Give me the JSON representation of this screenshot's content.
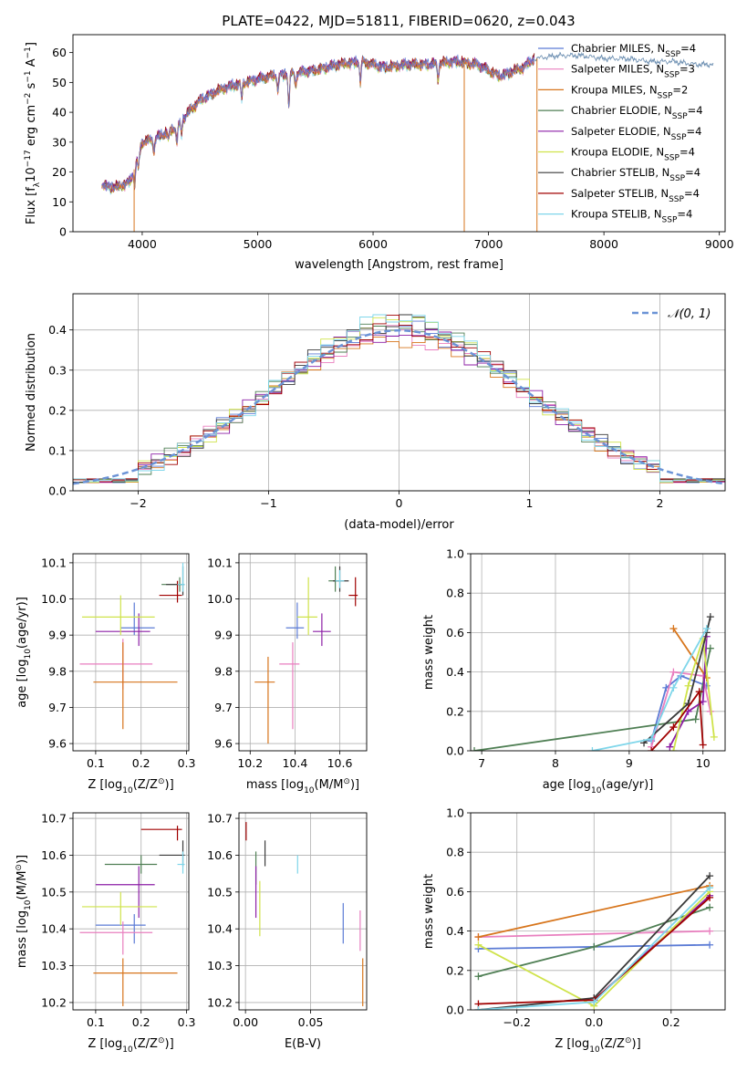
{
  "figure_title": "PLATE=0422, MJD=51811, FIBERID=0620, z=0.043",
  "colors": [
    "#5b7bd5",
    "#e97fbf",
    "#d7751c",
    "#4f7f54",
    "#8c1ea6",
    "#cfe34a",
    "#3a3a3a",
    "#a00000",
    "#7fd6ea"
  ],
  "chart_data": [
    {
      "id": "spectrum",
      "type": "line",
      "title": "PLATE=0422, MJD=51811, FIBERID=0620, z=0.043",
      "xlabel": "wavelength [Angstrom, rest frame]",
      "ylabel_parts": [
        "Flux [f",
        "λ",
        "10",
        "−17",
        " erg cm",
        "−2",
        " s",
        "−1",
        " A",
        "−1",
        "]"
      ],
      "xlim": [
        3400,
        9050
      ],
      "ylim": [
        0,
        66
      ],
      "xticks": [
        4000,
        5000,
        6000,
        7000,
        8000,
        9000
      ],
      "yticks": [
        0,
        10,
        20,
        30,
        40,
        50,
        60
      ],
      "grid": false,
      "legend_position": "right",
      "legend": [
        {
          "name": "Chabrier MILES, N",
          "sub": "SSP",
          "suffix": "=4"
        },
        {
          "name": "Salpeter MILES, N",
          "sub": "SSP",
          "suffix": "=3"
        },
        {
          "name": "Kroupa MILES, N",
          "sub": "SSP",
          "suffix": "=2"
        },
        {
          "name": "Chabrier ELODIE, N",
          "sub": "SSP",
          "suffix": "=4"
        },
        {
          "name": "Salpeter ELODIE, N",
          "sub": "SSP",
          "suffix": "=4"
        },
        {
          "name": "Kroupa ELODIE, N",
          "sub": "SSP",
          "suffix": "=4"
        },
        {
          "name": "Chabrier STELIB, N",
          "sub": "SSP",
          "suffix": "=4"
        },
        {
          "name": "Salpeter STELIB, N",
          "sub": "SSP",
          "suffix": "=4"
        },
        {
          "name": "Kroupa STELIB, N",
          "sub": "SSP",
          "suffix": "=4"
        }
      ],
      "continuum": {
        "x": [
          3650,
          3700,
          3800,
          3900,
          4000,
          4100,
          4200,
          4300,
          4400,
          4500,
          4700,
          4900,
          5100,
          5300,
          5500,
          5700,
          5900,
          6100,
          6300,
          6500,
          6700,
          6900,
          7100,
          7300,
          7400
        ],
        "y": [
          16,
          15,
          15,
          17,
          30,
          31,
          33,
          35,
          40,
          44,
          48,
          50,
          52,
          53,
          54,
          56,
          57,
          55,
          56,
          56,
          57,
          56,
          52,
          55,
          58
        ]
      },
      "model_x": [
        7400,
        7600,
        7800,
        8000,
        8200,
        8400,
        8600,
        8800,
        8950
      ],
      "model_y": [
        58,
        59,
        59,
        58,
        58,
        57,
        57,
        56,
        56
      ],
      "drops": [
        {
          "x": 3930,
          "series": 2
        },
        {
          "x": 6790,
          "series": 2
        },
        {
          "x": 7420,
          "series": 2
        }
      ]
    },
    {
      "id": "residuals",
      "type": "histogram",
      "xlabel": "(data-model)/error",
      "ylabel": "Normed distribution",
      "xlim": [
        -2.5,
        2.5
      ],
      "ylim": [
        0,
        0.49
      ],
      "xticks": [
        -2,
        -1,
        0,
        1,
        2
      ],
      "yticks": [
        0.0,
        0.1,
        0.2,
        0.3,
        0.4
      ],
      "grid": true,
      "legend_position": "top-right",
      "legend": [
        {
          "name": "𝒩(0, 1)",
          "style": "dashed",
          "color": "#6b93d6"
        }
      ],
      "bin_width": 0.1,
      "peak_heights": [
        0.4,
        0.38,
        0.36,
        0.41,
        0.39,
        0.44,
        0.43,
        0.41,
        0.45
      ]
    },
    {
      "id": "age-vs-Z",
      "type": "errorbar",
      "xlabel_parts": [
        "Z [log",
        "10",
        "(Z/Z",
        "⊙",
        ")]"
      ],
      "ylabel_parts": [
        "age  [log",
        "10",
        "(age/yr)]"
      ],
      "xlim": [
        0.05,
        0.305
      ],
      "ylim": [
        9.58,
        10.125
      ],
      "xticks": [
        0.1,
        0.2,
        0.3
      ],
      "yticks": [
        9.6,
        9.7,
        9.8,
        9.9,
        10.0,
        10.1
      ],
      "grid": true,
      "points": [
        {
          "x": 0.185,
          "y": 9.92,
          "xerr": [
            0.155,
            0.23
          ],
          "yerr": [
            9.9,
            9.99
          ],
          "series": 0
        },
        {
          "x": 0.16,
          "y": 9.82,
          "xerr": [
            0.065,
            0.225
          ],
          "yerr": [
            9.75,
            9.89
          ],
          "series": 1
        },
        {
          "x": 0.16,
          "y": 9.77,
          "xerr": [
            0.095,
            0.28
          ],
          "yerr": [
            9.64,
            9.88
          ],
          "series": 2
        },
        {
          "x": 0.285,
          "y": 10.04,
          "xerr": [
            0.245,
            0.29
          ],
          "yerr": [
            10.02,
            10.06
          ],
          "series": 3
        },
        {
          "x": 0.195,
          "y": 9.91,
          "xerr": [
            0.1,
            0.22
          ],
          "yerr": [
            9.87,
            9.96
          ],
          "series": 4
        },
        {
          "x": 0.155,
          "y": 9.95,
          "xerr": [
            0.07,
            0.23
          ],
          "yerr": [
            9.9,
            10.01
          ],
          "series": 5
        },
        {
          "x": 0.292,
          "y": 10.04,
          "xerr": [
            0.255,
            0.296
          ],
          "yerr": [
            10.01,
            10.09
          ],
          "series": 6
        },
        {
          "x": 0.28,
          "y": 10.01,
          "xerr": [
            0.24,
            0.29
          ],
          "yerr": [
            9.99,
            10.05
          ],
          "series": 7
        },
        {
          "x": 0.292,
          "y": 10.04,
          "xerr": [
            0.28,
            0.296
          ],
          "yerr": [
            10.02,
            10.1
          ],
          "series": 8
        }
      ]
    },
    {
      "id": "age-vs-mass",
      "type": "errorbar",
      "xlabel_parts": [
        "mass [log",
        "10",
        "(M/M",
        "⊙",
        ")]"
      ],
      "ylabel_parts": [],
      "xlim": [
        10.15,
        10.72
      ],
      "ylim": [
        9.58,
        10.125
      ],
      "xticks": [
        10.2,
        10.4,
        10.6
      ],
      "yticks": [
        9.6,
        9.7,
        9.8,
        9.9,
        10.0,
        10.1
      ],
      "grid": true,
      "points": [
        {
          "x": 10.41,
          "y": 9.92,
          "xerr": [
            10.36,
            10.44
          ],
          "yerr": [
            9.89,
            9.99
          ],
          "series": 0
        },
        {
          "x": 10.39,
          "y": 9.82,
          "xerr": [
            10.33,
            10.42
          ],
          "yerr": [
            9.64,
            9.88
          ],
          "series": 1
        },
        {
          "x": 10.28,
          "y": 9.77,
          "xerr": [
            10.22,
            10.31
          ],
          "yerr": [
            9.6,
            9.84
          ],
          "series": 2
        },
        {
          "x": 10.58,
          "y": 10.05,
          "xerr": [
            10.55,
            10.6
          ],
          "yerr": [
            10.02,
            10.09
          ],
          "series": 3
        },
        {
          "x": 10.52,
          "y": 9.91,
          "xerr": [
            10.48,
            10.56
          ],
          "yerr": [
            9.87,
            9.96
          ],
          "series": 4
        },
        {
          "x": 10.46,
          "y": 9.95,
          "xerr": [
            10.41,
            10.5
          ],
          "yerr": [
            9.9,
            10.06
          ],
          "series": 5
        },
        {
          "x": 10.6,
          "y": 10.05,
          "xerr": [
            10.57,
            10.64
          ],
          "yerr": [
            10.02,
            10.09
          ],
          "series": 6
        },
        {
          "x": 10.67,
          "y": 10.01,
          "xerr": [
            10.64,
            10.68
          ],
          "yerr": [
            9.98,
            10.06
          ],
          "series": 7
        },
        {
          "x": 10.6,
          "y": 10.05,
          "xerr": [
            10.58,
            10.62
          ],
          "yerr": [
            10.03,
            10.08
          ],
          "series": 8
        }
      ]
    },
    {
      "id": "massweight-vs-age",
      "type": "line",
      "xlabel_parts": [
        "age  [log",
        "10",
        "(age/yr)]"
      ],
      "ylabel": "mass weight",
      "xlim": [
        6.85,
        10.3
      ],
      "ylim": [
        0,
        1.0
      ],
      "xticks": [
        7,
        8,
        9,
        10
      ],
      "yticks": [
        0.0,
        0.2,
        0.4,
        0.6,
        0.8,
        1.0
      ],
      "grid": true,
      "series": [
        {
          "x": [
            9.3,
            9.5,
            9.7,
            10.05
          ],
          "y": [
            0.05,
            0.32,
            0.38,
            0.33
          ],
          "series": 0
        },
        {
          "x": [
            9.3,
            9.6,
            10.0,
            10.1
          ],
          "y": [
            0.02,
            0.4,
            0.38,
            0.2
          ],
          "series": 1
        },
        {
          "x": [
            9.6,
            10.05
          ],
          "y": [
            0.62,
            0.37
          ],
          "series": 2
        },
        {
          "x": [
            6.9,
            9.9,
            10.1
          ],
          "y": [
            0.0,
            0.16,
            0.52
          ],
          "series": 3
        },
        {
          "x": [
            9.55,
            9.8,
            10.0,
            10.05
          ],
          "y": [
            0.02,
            0.2,
            0.25,
            0.58
          ],
          "series": 4
        },
        {
          "x": [
            9.6,
            9.8,
            10.0,
            10.15
          ],
          "y": [
            0.0,
            0.33,
            0.57,
            0.07
          ],
          "series": 5
        },
        {
          "x": [
            9.2,
            9.8,
            10.05,
            10.1
          ],
          "y": [
            0.04,
            0.24,
            0.6,
            0.68
          ],
          "series": 6
        },
        {
          "x": [
            9.3,
            9.6,
            9.95,
            10.0
          ],
          "y": [
            0.0,
            0.12,
            0.3,
            0.03
          ],
          "series": 7
        },
        {
          "x": [
            8.5,
            9.3,
            9.6,
            10.05
          ],
          "y": [
            0.0,
            0.06,
            0.32,
            0.62
          ],
          "series": 8
        }
      ]
    },
    {
      "id": "mass-vs-Z",
      "type": "errorbar",
      "xlabel_parts": [
        "Z [log",
        "10",
        "(Z/Z",
        "⊙",
        ")]"
      ],
      "ylabel_parts": [
        "mass [log",
        "10",
        "(M/M",
        "⊙",
        ")]"
      ],
      "xlim": [
        0.05,
        0.305
      ],
      "ylim": [
        10.18,
        10.715
      ],
      "xticks": [
        0.1,
        0.2,
        0.3
      ],
      "yticks": [
        10.2,
        10.3,
        10.4,
        10.5,
        10.6,
        10.7
      ],
      "grid": true,
      "points": [
        {
          "x": 0.185,
          "y": 10.41,
          "xerr": [
            0.1,
            0.21
          ],
          "yerr": [
            10.36,
            10.44
          ],
          "series": 0
        },
        {
          "x": 0.16,
          "y": 10.39,
          "xerr": [
            0.065,
            0.225
          ],
          "yerr": [
            10.33,
            10.42
          ],
          "series": 1
        },
        {
          "x": 0.16,
          "y": 10.28,
          "xerr": [
            0.095,
            0.28
          ],
          "yerr": [
            10.19,
            10.32
          ],
          "series": 2
        },
        {
          "x": 0.2,
          "y": 10.575,
          "xerr": [
            0.12,
            0.235
          ],
          "yerr": [
            10.55,
            10.6
          ],
          "series": 3
        },
        {
          "x": 0.195,
          "y": 10.52,
          "xerr": [
            0.1,
            0.23
          ],
          "yerr": [
            10.43,
            10.57
          ],
          "series": 4
        },
        {
          "x": 0.155,
          "y": 10.46,
          "xerr": [
            0.07,
            0.235
          ],
          "yerr": [
            10.41,
            10.5
          ],
          "series": 5
        },
        {
          "x": 0.292,
          "y": 10.6,
          "xerr": [
            0.24,
            0.296
          ],
          "yerr": [
            10.57,
            10.64
          ],
          "series": 6
        },
        {
          "x": 0.28,
          "y": 10.67,
          "xerr": [
            0.2,
            0.29
          ],
          "yerr": [
            10.64,
            10.68
          ],
          "series": 7
        },
        {
          "x": 0.292,
          "y": 10.575,
          "xerr": [
            0.28,
            0.296
          ],
          "yerr": [
            10.55,
            10.61
          ],
          "series": 8
        }
      ]
    },
    {
      "id": "mass-vs-ebv",
      "type": "errorbar",
      "xlabel": "E(B-V)",
      "ylabel_parts": [],
      "xlim": [
        -0.005,
        0.093
      ],
      "ylim": [
        10.18,
        10.715
      ],
      "xticks": [
        0.0,
        0.05
      ],
      "xtick_labels": [
        "0.00",
        "0.05"
      ],
      "yticks": [
        10.2,
        10.3,
        10.4,
        10.5,
        10.6,
        10.7
      ],
      "grid": true,
      "points": [
        {
          "x": 0.075,
          "y": 10.41,
          "yerr": [
            10.36,
            10.47
          ],
          "series": 0
        },
        {
          "x": 0.088,
          "y": 10.39,
          "yerr": [
            10.34,
            10.45
          ],
          "series": 1
        },
        {
          "x": 0.09,
          "y": 10.25,
          "yerr": [
            10.19,
            10.32
          ],
          "series": 2
        },
        {
          "x": 0.008,
          "y": 10.575,
          "yerr": [
            10.52,
            10.61
          ],
          "series": 3
        },
        {
          "x": 0.008,
          "y": 10.5,
          "yerr": [
            10.43,
            10.57
          ],
          "series": 4
        },
        {
          "x": 0.011,
          "y": 10.44,
          "yerr": [
            10.38,
            10.53
          ],
          "series": 5
        },
        {
          "x": 0.015,
          "y": 10.6,
          "yerr": [
            10.57,
            10.64
          ],
          "series": 6
        },
        {
          "x": 0.0005,
          "y": 10.67,
          "yerr": [
            10.64,
            10.69
          ],
          "series": 7
        },
        {
          "x": 0.04,
          "y": 10.575,
          "yerr": [
            10.55,
            10.6
          ],
          "series": 8
        }
      ]
    },
    {
      "id": "massweight-vs-Z",
      "type": "line",
      "xlabel_parts": [
        "Z [log",
        "10",
        "(Z/Z",
        "⊙",
        ")]"
      ],
      "ylabel": "mass weight",
      "xlim": [
        -0.32,
        0.34
      ],
      "ylim": [
        0,
        1.0
      ],
      "xticks": [
        -0.2,
        0.0,
        0.2
      ],
      "xtick_labels": [
        "−0.2",
        "0.0",
        "0.2"
      ],
      "yticks": [
        0.0,
        0.2,
        0.4,
        0.6,
        0.8,
        1.0
      ],
      "grid": true,
      "series": [
        {
          "x": [
            -0.3,
            0.0,
            0.3
          ],
          "y": [
            0.31,
            0.32,
            0.33
          ],
          "series": 0
        },
        {
          "x": [
            -0.3,
            0.3
          ],
          "y": [
            0.37,
            0.4
          ],
          "series": 1
        },
        {
          "x": [
            -0.3,
            0.3
          ],
          "y": [
            0.37,
            0.63
          ],
          "series": 2
        },
        {
          "x": [
            -0.3,
            0.0,
            0.3
          ],
          "y": [
            0.17,
            0.32,
            0.52
          ],
          "series": 3
        },
        {
          "x": [
            0.0,
            0.3
          ],
          "y": [
            0.05,
            0.58
          ],
          "series": 4
        },
        {
          "x": [
            -0.3,
            0.0,
            0.3
          ],
          "y": [
            0.33,
            0.02,
            0.6
          ],
          "series": 5
        },
        {
          "x": [
            -0.3,
            0.0,
            0.3
          ],
          "y": [
            0.0,
            0.06,
            0.68
          ],
          "series": 6
        },
        {
          "x": [
            -0.3,
            0.0,
            0.3
          ],
          "y": [
            0.03,
            0.05,
            0.57
          ],
          "series": 7
        },
        {
          "x": [
            -0.3,
            0.0,
            0.3
          ],
          "y": [
            0.0,
            0.04,
            0.62
          ],
          "series": 8
        }
      ]
    }
  ]
}
